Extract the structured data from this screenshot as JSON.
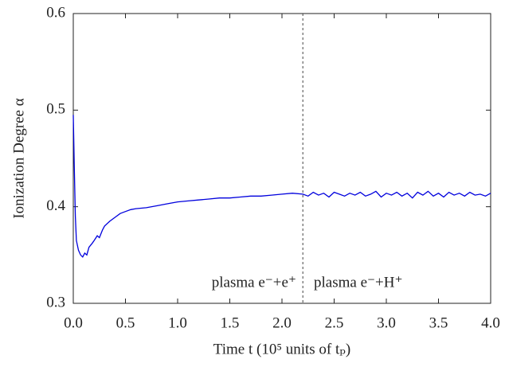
{
  "chart_data": {
    "type": "line",
    "xlabel": "Time t (10⁵ units of tₚ)",
    "ylabel": "Ionization Degree α",
    "xlim": [
      0,
      4.0
    ],
    "ylim": [
      0.3,
      0.6
    ],
    "xticks": [
      {
        "value": 0,
        "label": "0.0"
      },
      0.5,
      {
        "value": 1,
        "label": "1.0"
      },
      1.5,
      {
        "value": 2,
        "label": "2.0"
      },
      2.5,
      {
        "value": 3,
        "label": "3.0"
      },
      3.5,
      {
        "value": 4,
        "label": "4.0"
      }
    ],
    "yticks": [
      0.3,
      0.4,
      0.5,
      0.6
    ],
    "vlines": [
      2.2
    ],
    "annotations": [
      "plasma e⁻+e⁺",
      "plasma e⁻+H⁺"
    ],
    "series": [
      {
        "color": "#0000dd",
        "x": [
          0,
          0.01,
          0.02,
          0.03,
          0.05,
          0.07,
          0.09,
          0.11,
          0.13,
          0.15,
          0.18,
          0.2,
          0.23,
          0.25,
          0.28,
          0.3,
          0.35,
          0.4,
          0.45,
          0.5,
          0.55,
          0.6,
          0.7,
          0.8,
          0.9,
          1.0,
          1.1,
          1.2,
          1.3,
          1.4,
          1.5,
          1.6,
          1.7,
          1.8,
          1.9,
          2.0,
          2.1,
          2.2,
          2.25,
          2.3,
          2.35,
          2.4,
          2.45,
          2.5,
          2.55,
          2.6,
          2.65,
          2.7,
          2.75,
          2.8,
          2.85,
          2.9,
          2.95,
          3.0,
          3.05,
          3.1,
          3.15,
          3.2,
          3.25,
          3.3,
          3.35,
          3.4,
          3.45,
          3.5,
          3.55,
          3.6,
          3.65,
          3.7,
          3.75,
          3.8,
          3.85,
          3.9,
          3.95,
          4.0
        ],
        "values": [
          0.495,
          0.44,
          0.39,
          0.365,
          0.355,
          0.35,
          0.348,
          0.352,
          0.35,
          0.358,
          0.362,
          0.365,
          0.37,
          0.368,
          0.376,
          0.38,
          0.385,
          0.389,
          0.393,
          0.395,
          0.397,
          0.398,
          0.399,
          0.401,
          0.403,
          0.405,
          0.406,
          0.407,
          0.408,
          0.409,
          0.409,
          0.41,
          0.411,
          0.411,
          0.412,
          0.413,
          0.414,
          0.413,
          0.411,
          0.415,
          0.412,
          0.414,
          0.41,
          0.415,
          0.413,
          0.411,
          0.414,
          0.412,
          0.415,
          0.411,
          0.413,
          0.416,
          0.41,
          0.414,
          0.412,
          0.415,
          0.411,
          0.414,
          0.409,
          0.415,
          0.412,
          0.416,
          0.411,
          0.414,
          0.41,
          0.415,
          0.412,
          0.414,
          0.411,
          0.415,
          0.412,
          0.413,
          0.411,
          0.414
        ]
      }
    ]
  }
}
